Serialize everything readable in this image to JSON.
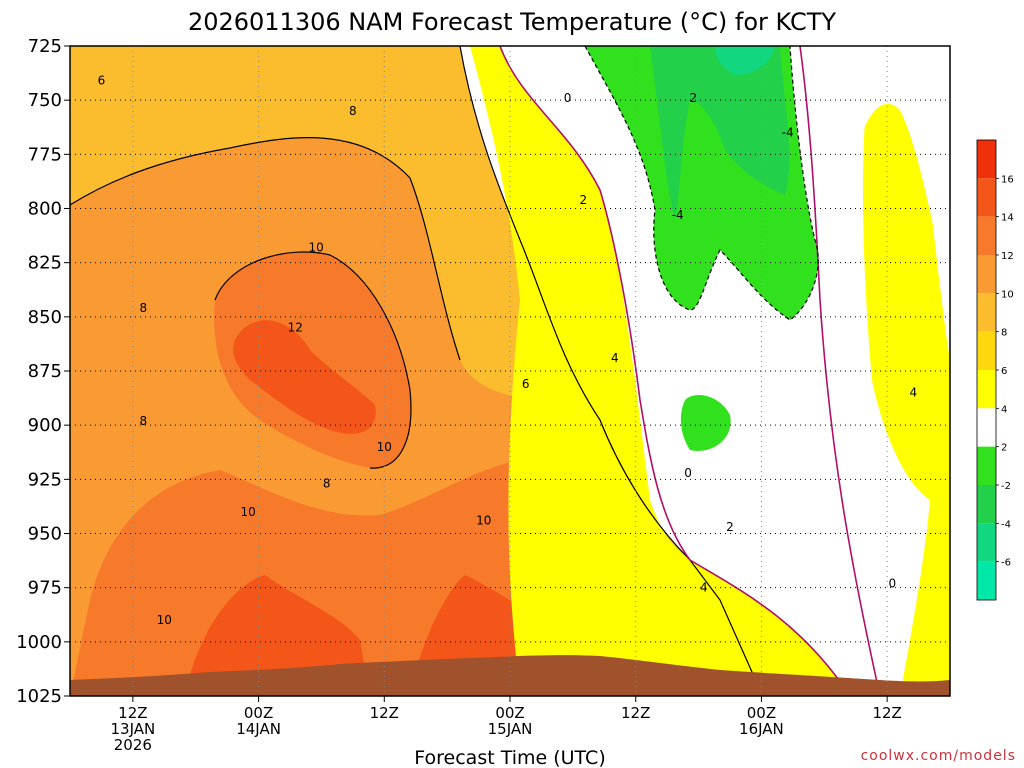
{
  "chart_data": {
    "type": "heatmap",
    "title": "2026011306 NAM Forecast Temperature (°C) for KCTY",
    "xlabel": "Forecast Time (UTC)",
    "ylabel": "",
    "credit": "coolwx.com/models",
    "y_axis": {
      "unit": "hPa",
      "ticks": [
        "725",
        "750",
        "775",
        "800",
        "825",
        "850",
        "875",
        "900",
        "925",
        "950",
        "975",
        "1000",
        "1025"
      ],
      "range": [
        725,
        1025
      ],
      "inverted": false
    },
    "x_axis": {
      "ticks": [
        {
          "lines": [
            "12Z",
            "13JAN",
            "2026"
          ]
        },
        {
          "lines": [
            "00Z",
            "14JAN"
          ]
        },
        {
          "lines": [
            "12Z"
          ]
        },
        {
          "lines": [
            "00Z",
            "15JAN"
          ]
        },
        {
          "lines": [
            "12Z"
          ]
        },
        {
          "lines": [
            "00Z",
            "16JAN"
          ]
        },
        {
          "lines": [
            "12Z"
          ]
        }
      ],
      "hours": [
        6,
        18,
        30,
        42,
        54,
        66,
        78
      ],
      "range_hours": [
        0,
        84
      ]
    },
    "grid": true,
    "colorbar": {
      "placement": "right",
      "ticks": [
        "16",
        "14",
        "12",
        "10",
        "8",
        "6",
        "4",
        "2",
        "-2",
        "-4",
        "-6"
      ],
      "levels": [
        18,
        16,
        14,
        12,
        10,
        8,
        6,
        4,
        2,
        -2,
        -4,
        -6,
        -8
      ],
      "colors": [
        "#f0300a",
        "#f4561a",
        "#f77a2a",
        "#f99b32",
        "#fbbc2e",
        "#fdd80e",
        "#ffff00",
        "#ffffff",
        "#32e11e",
        "#22d04a",
        "#12d780",
        "#00e8a8"
      ]
    },
    "contour_labels": [
      {
        "text": "6",
        "hour": 3.0,
        "p": 741
      },
      {
        "text": "8",
        "hour": 27.0,
        "p": 755
      },
      {
        "text": "10",
        "hour": 23.5,
        "p": 818
      },
      {
        "text": "8",
        "hour": 7.0,
        "p": 846
      },
      {
        "text": "12",
        "hour": 21.5,
        "p": 855
      },
      {
        "text": "8",
        "hour": 7.0,
        "p": 898
      },
      {
        "text": "10",
        "hour": 30.0,
        "p": 910
      },
      {
        "text": "8",
        "hour": 24.5,
        "p": 927
      },
      {
        "text": "10",
        "hour": 17.0,
        "p": 940
      },
      {
        "text": "10",
        "hour": 39.5,
        "p": 944
      },
      {
        "text": "10",
        "hour": 9.0,
        "p": 990
      },
      {
        "text": "6",
        "hour": 43.5,
        "p": 881
      },
      {
        "text": "0",
        "hour": 47.5,
        "p": 749
      },
      {
        "text": "2",
        "hour": 59.5,
        "p": 749
      },
      {
        "text": "-4",
        "hour": 68.5,
        "p": 765
      },
      {
        "text": "2",
        "hour": 49.0,
        "p": 796
      },
      {
        "text": "-4",
        "hour": 58.0,
        "p": 803
      },
      {
        "text": "4",
        "hour": 52.0,
        "p": 869
      },
      {
        "text": "4",
        "hour": 80.5,
        "p": 885
      },
      {
        "text": "0",
        "hour": 59.0,
        "p": 922
      },
      {
        "text": "2",
        "hour": 63.0,
        "p": 947
      },
      {
        "text": "4",
        "hour": 60.5,
        "p": 975
      },
      {
        "text": "0",
        "hour": 78.5,
        "p": 973
      }
    ]
  }
}
